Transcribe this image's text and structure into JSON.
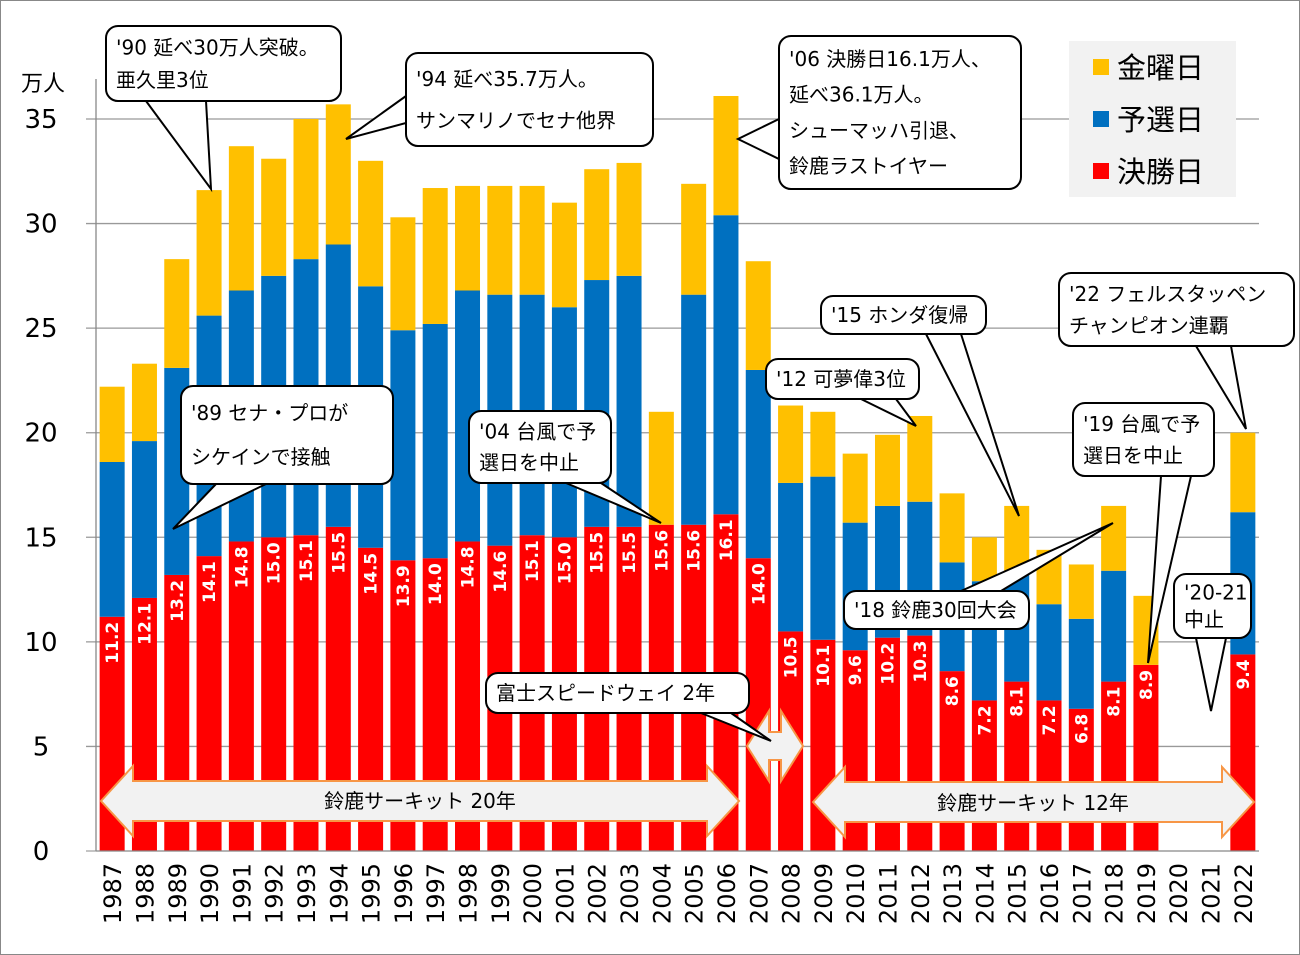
{
  "chart_data": {
    "type": "bar",
    "stacked": true,
    "ylabel": "万人",
    "ylim": [
      0,
      37
    ],
    "yticks": [
      0,
      5,
      10,
      15,
      20,
      25,
      30,
      35
    ],
    "grid": true,
    "legend_position": "top-right",
    "categories": [
      "1987",
      "1988",
      "1989",
      "1990",
      "1991",
      "1992",
      "1993",
      "1994",
      "1995",
      "1996",
      "1997",
      "1998",
      "1999",
      "2000",
      "2001",
      "2002",
      "2003",
      "2004",
      "2005",
      "2006",
      "2007",
      "2008",
      "2009",
      "2010",
      "2011",
      "2012",
      "2013",
      "2014",
      "2015",
      "2016",
      "2017",
      "2018",
      "2019",
      "2020",
      "2021",
      "2022"
    ],
    "series": [
      {
        "name": "決勝日",
        "color": "#ff0000",
        "labeled": true,
        "values": [
          11.2,
          12.1,
          13.2,
          14.1,
          14.8,
          15.0,
          15.1,
          15.5,
          14.5,
          13.9,
          14.0,
          14.8,
          14.6,
          15.1,
          15.0,
          15.5,
          15.5,
          15.6,
          15.6,
          16.1,
          14.0,
          10.5,
          10.1,
          9.6,
          10.2,
          10.3,
          8.6,
          7.2,
          8.1,
          7.2,
          6.8,
          8.1,
          8.9,
          0,
          0,
          9.4
        ]
      },
      {
        "name": "予選日",
        "color": "#0070c0",
        "values": [
          7.4,
          7.5,
          9.9,
          11.5,
          12.0,
          12.5,
          13.2,
          13.5,
          12.5,
          11.0,
          11.2,
          12.0,
          12.0,
          11.5,
          11.0,
          11.8,
          12.0,
          0,
          11.0,
          14.3,
          9.0,
          7.1,
          7.8,
          6.1,
          6.3,
          6.4,
          5.2,
          5.7,
          5.1,
          4.6,
          4.3,
          5.3,
          0,
          0,
          0,
          6.8
        ]
      },
      {
        "name": "金曜日",
        "color": "#ffc000",
        "values": [
          3.6,
          3.7,
          5.2,
          6.0,
          6.9,
          5.6,
          6.7,
          6.7,
          6.0,
          5.4,
          6.5,
          5.0,
          5.2,
          5.2,
          5.0,
          5.3,
          5.4,
          5.4,
          5.3,
          5.7,
          5.2,
          3.7,
          3.1,
          3.3,
          3.4,
          4.1,
          3.3,
          2.1,
          3.3,
          2.6,
          2.6,
          3.1,
          3.3,
          0,
          0,
          3.8
        ]
      }
    ],
    "legend": [
      "金曜日",
      "予選日",
      "決勝日"
    ],
    "annotations": [
      {
        "lines": [
          "'90 延べ30万人突破。",
          "亜久里3位"
        ]
      },
      {
        "lines": [
          "'94 延べ35.7万人。",
          "サンマリノでセナ他界"
        ]
      },
      {
        "lines": [
          "'06 決勝日16.1万人、",
          "延べ36.1万人。",
          "シューマッハ引退、",
          "鈴鹿ラストイヤー"
        ]
      },
      {
        "lines": [
          "'89 セナ・プロが",
          "シケインで接触"
        ]
      },
      {
        "lines": [
          "'04 台風で予",
          "選日を中止"
        ]
      },
      {
        "lines": [
          "'12 可夢偉3位"
        ]
      },
      {
        "lines": [
          "'15 ホンダ復帰"
        ]
      },
      {
        "lines": [
          "'18 鈴鹿30回大会"
        ]
      },
      {
        "lines": [
          "'22 フェルスタッペン",
          "チャンピオン連覇"
        ]
      },
      {
        "lines": [
          "'19 台風で予",
          "選日を中止"
        ]
      },
      {
        "lines": [
          "'20-21",
          "中止"
        ]
      },
      {
        "lines": [
          "富士スピードウェイ 2年"
        ]
      }
    ],
    "period_arrows": [
      {
        "label": "鈴鹿サーキット 20年"
      },
      {
        "label": ""
      },
      {
        "label": "鈴鹿サーキット 12年"
      }
    ]
  }
}
